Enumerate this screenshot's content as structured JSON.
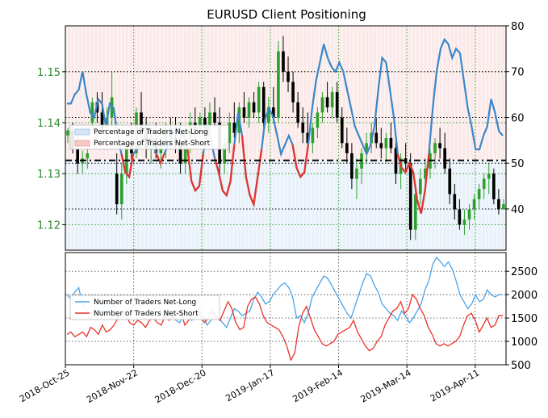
{
  "chart_data": {
    "title": "EURUSD Client Positioning",
    "type": "candlestick+line",
    "colors": {
      "up": "#2ca02c",
      "down": "#000000",
      "long": "#3a87c8",
      "short": "#e8322b",
      "long_thin": "#4aa3e8",
      "short_thin": "#e8322b"
    },
    "x_ticks": [
      "2018-Oct-25",
      "2018-Nov-22",
      "2018-Dec-20",
      "2019-Jan-17",
      "2019-Feb-14",
      "2019-Mar-14",
      "2019-Apr-11"
    ],
    "price_axis": {
      "ticks": [
        1.12,
        1.13,
        1.14,
        1.15
      ],
      "ylim": [
        1.115,
        1.159
      ]
    },
    "pct_axis": {
      "ticks": [
        40,
        50,
        60,
        70,
        80
      ],
      "ylim": [
        31,
        80
      ],
      "reference": 50.6
    },
    "count_axis": {
      "ticks": [
        500,
        1000,
        1500,
        2000,
        2500
      ],
      "ylim": [
        500,
        2900
      ]
    },
    "legend_top": [
      "Percentage of Traders Net-Long",
      "Percentage of Traders Net-Short"
    ],
    "legend_bottom": [
      "Number of Traders Net-Long",
      "Number of Traders Net-Short"
    ],
    "pct_long_series": [
      63,
      63,
      65,
      66,
      70,
      65,
      61,
      60,
      64,
      63,
      58,
      63,
      62,
      56,
      52,
      48,
      47,
      52,
      53,
      54,
      56,
      58,
      55,
      52,
      50,
      52,
      54,
      56,
      58,
      57,
      56,
      53,
      46,
      44,
      45,
      52,
      58,
      55,
      51,
      48,
      44,
      43,
      46,
      54,
      61,
      56,
      47,
      43,
      41,
      47,
      53,
      60,
      62,
      60,
      56,
      52,
      54,
      56,
      54,
      49,
      47,
      48,
      54,
      62,
      68,
      72,
      76,
      73,
      71,
      70,
      72,
      70,
      66,
      62,
      58,
      56,
      54,
      52,
      54,
      58,
      66,
      73,
      72,
      66,
      60,
      52,
      49,
      48,
      50,
      48,
      42,
      39,
      44,
      52,
      62,
      70,
      75,
      77,
      76,
      73,
      75,
      74,
      68,
      62,
      58,
      53,
      53,
      56,
      58,
      64,
      61,
      57,
      56
    ],
    "pct_short_index_note": "short line shown where long pct drops below reference",
    "count_long_series": [
      2000,
      1900,
      2050,
      2150,
      1800,
      1650,
      1500,
      1550,
      1700,
      1600,
      1850,
      1700,
      1750,
      1550,
      1500,
      1650,
      1700,
      1750,
      1800,
      1750,
      1900,
      1700,
      1650,
      1750,
      1700,
      1500,
      1650,
      1550,
      1450,
      1400,
      1600,
      1550,
      1450,
      1500,
      1650,
      1550,
      1350,
      1450,
      1600,
      1500,
      1400,
      1300,
      1500,
      1700,
      1650,
      1550,
      1600,
      1650,
      1900,
      2050,
      1950,
      1800,
      1850,
      2000,
      2100,
      2200,
      2250,
      2150,
      1950,
      1500,
      1550,
      1400,
      1600,
      1950,
      2100,
      2250,
      2400,
      2350,
      2200,
      2050,
      1900,
      1750,
      1600,
      1500,
      1750,
      2000,
      2250,
      2450,
      2400,
      2200,
      2050,
      1800,
      1700,
      1600,
      1550,
      1450,
      1650,
      1550,
      1400,
      1500,
      1650,
      1800,
      2100,
      2300,
      2650,
      2800,
      2700,
      2600,
      2700,
      2550,
      2300,
      2000,
      1850,
      1700,
      1800,
      2000,
      1850,
      1900,
      2100,
      2000,
      1950,
      2000,
      2000
    ],
    "count_short_series": [
      1150,
      1200,
      1100,
      1150,
      1200,
      1100,
      1300,
      1250,
      1150,
      1350,
      1200,
      1250,
      1350,
      1500,
      1600,
      1550,
      1400,
      1350,
      1450,
      1400,
      1300,
      1450,
      1500,
      1400,
      1350,
      1550,
      1450,
      1550,
      1600,
      1650,
      1350,
      1450,
      1600,
      1700,
      1550,
      1400,
      1500,
      1650,
      1500,
      1450,
      1650,
      1850,
      1700,
      1400,
      1250,
      1300,
      1750,
      1900,
      1950,
      1800,
      1550,
      1400,
      1350,
      1300,
      1250,
      1100,
      900,
      600,
      750,
      1300,
      1600,
      1750,
      1500,
      1250,
      1100,
      950,
      900,
      950,
      1000,
      1150,
      1200,
      1250,
      1300,
      1450,
      1200,
      1050,
      900,
      800,
      850,
      1000,
      1100,
      1350,
      1500,
      1650,
      1700,
      1850,
      1600,
      1700,
      2000,
      1900,
      1700,
      1550,
      1300,
      1150,
      950,
      900,
      950,
      900,
      950,
      1000,
      1100,
      1350,
      1550,
      1600,
      1450,
      1200,
      1350,
      1500,
      1300,
      1350,
      1550,
      1550
    ],
    "candles": [
      [
        1.1375,
        1.139,
        1.136,
        1.1385
      ],
      [
        1.1385,
        1.14,
        1.134,
        1.135
      ],
      [
        1.135,
        1.138,
        1.13,
        1.132
      ],
      [
        1.132,
        1.1345,
        1.13,
        1.133
      ],
      [
        1.133,
        1.135,
        1.131,
        1.134
      ],
      [
        1.14,
        1.145,
        1.138,
        1.144
      ],
      [
        1.144,
        1.146,
        1.14,
        1.142
      ],
      [
        1.142,
        1.146,
        1.138,
        1.139
      ],
      [
        1.139,
        1.143,
        1.136,
        1.141
      ],
      [
        1.141,
        1.15,
        1.139,
        1.145
      ],
      [
        1.13,
        1.134,
        1.122,
        1.124
      ],
      [
        1.124,
        1.132,
        1.121,
        1.13
      ],
      [
        1.13,
        1.137,
        1.128,
        1.136
      ],
      [
        1.136,
        1.14,
        1.132,
        1.134
      ],
      [
        1.134,
        1.143,
        1.133,
        1.142
      ],
      [
        1.142,
        1.146,
        1.137,
        1.138
      ],
      [
        1.138,
        1.141,
        1.133,
        1.135
      ],
      [
        1.135,
        1.139,
        1.132,
        1.137
      ],
      [
        1.137,
        1.14,
        1.133,
        1.134
      ],
      [
        1.134,
        1.138,
        1.131,
        1.136
      ],
      [
        1.136,
        1.14,
        1.133,
        1.139
      ],
      [
        1.139,
        1.141,
        1.135,
        1.137
      ],
      [
        1.137,
        1.141,
        1.134,
        1.136
      ],
      [
        1.136,
        1.14,
        1.13,
        1.132
      ],
      [
        1.132,
        1.138,
        1.13,
        1.137
      ],
      [
        1.137,
        1.142,
        1.134,
        1.14
      ],
      [
        1.14,
        1.143,
        1.136,
        1.138
      ],
      [
        1.138,
        1.142,
        1.135,
        1.141
      ],
      [
        1.141,
        1.143,
        1.137,
        1.139
      ],
      [
        1.139,
        1.144,
        1.137,
        1.142
      ],
      [
        1.142,
        1.145,
        1.139,
        1.14
      ],
      [
        1.14,
        1.143,
        1.13,
        1.132
      ],
      [
        1.132,
        1.138,
        1.13,
        1.136
      ],
      [
        1.136,
        1.142,
        1.134,
        1.14
      ],
      [
        1.14,
        1.144,
        1.137,
        1.138
      ],
      [
        1.138,
        1.144,
        1.136,
        1.143
      ],
      [
        1.143,
        1.146,
        1.14,
        1.141
      ],
      [
        1.141,
        1.145,
        1.139,
        1.144
      ],
      [
        1.144,
        1.146,
        1.141,
        1.142
      ],
      [
        1.142,
        1.148,
        1.14,
        1.147
      ],
      [
        1.147,
        1.148,
        1.139,
        1.14
      ],
      [
        1.14,
        1.145,
        1.138,
        1.143
      ],
      [
        1.143,
        1.147,
        1.14,
        1.141
      ],
      [
        1.141,
        1.156,
        1.14,
        1.154
      ],
      [
        1.154,
        1.157,
        1.148,
        1.15
      ],
      [
        1.15,
        1.153,
        1.146,
        1.148
      ],
      [
        1.148,
        1.15,
        1.142,
        1.144
      ],
      [
        1.144,
        1.146,
        1.139,
        1.14
      ],
      [
        1.14,
        1.143,
        1.136,
        1.138
      ],
      [
        1.138,
        1.142,
        1.135,
        1.136
      ],
      [
        1.136,
        1.14,
        1.134,
        1.139
      ],
      [
        1.139,
        1.143,
        1.137,
        1.142
      ],
      [
        1.142,
        1.146,
        1.14,
        1.145
      ],
      [
        1.145,
        1.148,
        1.142,
        1.143
      ],
      [
        1.143,
        1.147,
        1.141,
        1.146
      ],
      [
        1.146,
        1.148,
        1.14,
        1.141
      ],
      [
        1.141,
        1.143,
        1.135,
        1.136
      ],
      [
        1.136,
        1.139,
        1.132,
        1.134
      ],
      [
        1.134,
        1.136,
        1.127,
        1.129
      ],
      [
        1.129,
        1.133,
        1.125,
        1.131
      ],
      [
        1.131,
        1.135,
        1.128,
        1.134
      ],
      [
        1.134,
        1.138,
        1.132,
        1.136
      ],
      [
        1.136,
        1.14,
        1.134,
        1.138
      ],
      [
        1.138,
        1.141,
        1.135,
        1.136
      ],
      [
        1.136,
        1.139,
        1.133,
        1.135
      ],
      [
        1.135,
        1.138,
        1.132,
        1.137
      ],
      [
        1.137,
        1.14,
        1.134,
        1.135
      ],
      [
        1.135,
        1.137,
        1.128,
        1.13
      ],
      [
        1.13,
        1.134,
        1.127,
        1.133
      ],
      [
        1.133,
        1.136,
        1.13,
        1.132
      ],
      [
        1.132,
        1.134,
        1.117,
        1.119
      ],
      [
        1.119,
        1.127,
        1.117,
        1.126
      ],
      [
        1.126,
        1.131,
        1.124,
        1.129
      ],
      [
        1.129,
        1.133,
        1.127,
        1.131
      ],
      [
        1.131,
        1.135,
        1.129,
        1.134
      ],
      [
        1.134,
        1.137,
        1.131,
        1.136
      ],
      [
        1.136,
        1.139,
        1.133,
        1.135
      ],
      [
        1.135,
        1.138,
        1.13,
        1.131
      ],
      [
        1.131,
        1.133,
        1.124,
        1.126
      ],
      [
        1.126,
        1.128,
        1.121,
        1.123
      ],
      [
        1.123,
        1.125,
        1.119,
        1.12
      ],
      [
        1.12,
        1.123,
        1.118,
        1.121
      ],
      [
        1.121,
        1.124,
        1.119,
        1.123
      ],
      [
        1.123,
        1.126,
        1.121,
        1.125
      ],
      [
        1.125,
        1.128,
        1.123,
        1.127
      ],
      [
        1.127,
        1.13,
        1.125,
        1.129
      ],
      [
        1.129,
        1.132,
        1.126,
        1.13
      ],
      [
        1.13,
        1.131,
        1.124,
        1.125
      ],
      [
        1.125,
        1.127,
        1.122,
        1.123
      ],
      [
        1.123,
        1.125,
        1.123,
        1.124
      ]
    ]
  }
}
